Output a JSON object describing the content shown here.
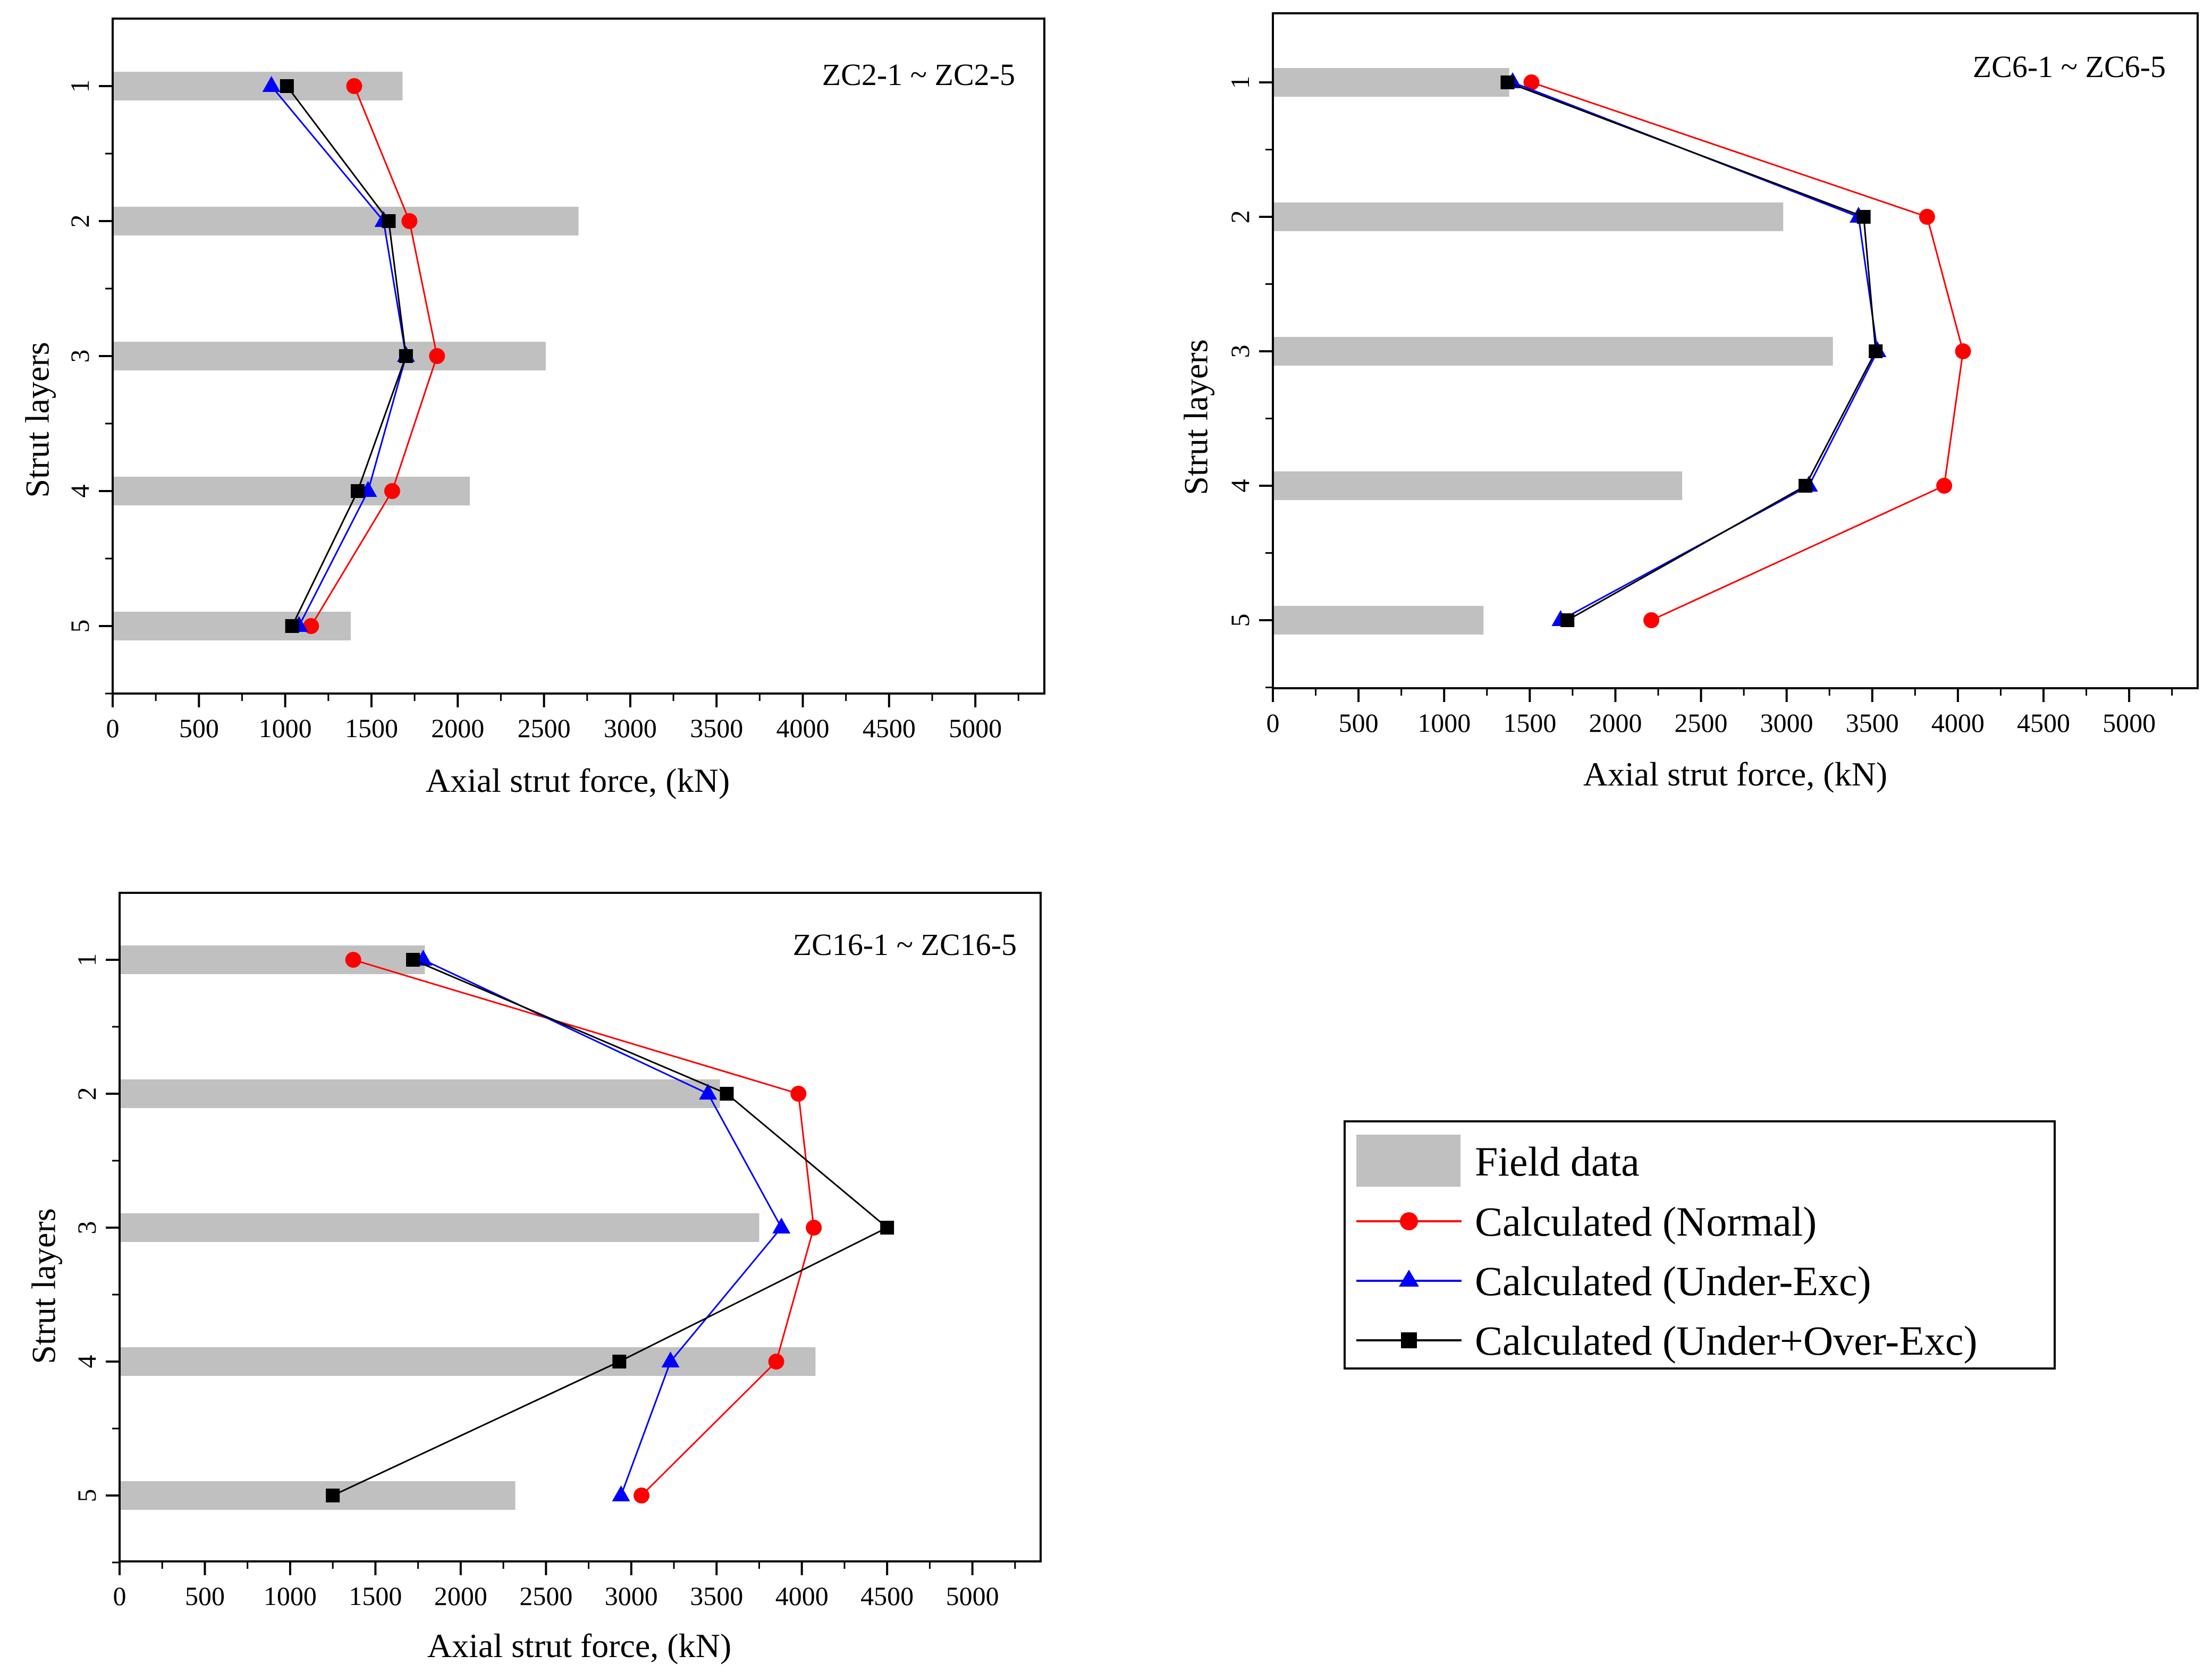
{
  "figure": {
    "legend": {
      "entries": [
        {
          "key": "field",
          "label": "Field data",
          "color": "#c0c0c0",
          "marker": "bar"
        },
        {
          "key": "normal",
          "label": "Calculated (Normal)",
          "color": "#ff0000",
          "marker": "circle"
        },
        {
          "key": "under",
          "label": "Calculated (Under-Exc)",
          "color": "#0000ff",
          "marker": "triangle"
        },
        {
          "key": "overunder",
          "label": "Calculated (Under+Over-Exc)",
          "color": "#000000",
          "marker": "square"
        }
      ]
    }
  },
  "chart_data": [
    {
      "type": "bar+line",
      "title": "ZC2-1 ~ ZC2-5",
      "xlabel": "Axial strut force, (kN)",
      "ylabel": "Strut layers",
      "xlim": [
        0,
        5400
      ],
      "xticks": [
        0,
        500,
        1000,
        1500,
        2000,
        2500,
        3000,
        3500,
        4000,
        4500,
        5000
      ],
      "categories": [
        "1",
        "2",
        "3",
        "4",
        "5"
      ],
      "series": [
        {
          "key": "field",
          "name": "Field data",
          "values": [
            1680,
            2700,
            2510,
            2070,
            1380
          ]
        },
        {
          "key": "normal",
          "name": "Calculated (Normal)",
          "values": [
            1400,
            1720,
            1880,
            1620,
            1150
          ]
        },
        {
          "key": "under",
          "name": "Calculated (Under-Exc)",
          "values": [
            920,
            1570,
            1700,
            1480,
            1080
          ]
        },
        {
          "key": "overunder",
          "name": "Calculated (Under+Over-Exc)",
          "values": [
            1010,
            1600,
            1700,
            1420,
            1040
          ]
        }
      ]
    },
    {
      "type": "bar+line",
      "title": "ZC6-1 ~ ZC6-5",
      "xlabel": "Axial strut force, (kN)",
      "ylabel": "Strut layers",
      "xlim": [
        0,
        5400
      ],
      "xticks": [
        0,
        500,
        1000,
        1500,
        2000,
        2500,
        3000,
        3500,
        4000,
        4500,
        5000
      ],
      "categories": [
        "1",
        "2",
        "3",
        "4",
        "5"
      ],
      "series": [
        {
          "key": "field",
          "name": "Field data",
          "values": [
            1380,
            2980,
            3270,
            2390,
            1230
          ]
        },
        {
          "key": "normal",
          "name": "Calculated (Normal)",
          "values": [
            1510,
            3820,
            4030,
            3920,
            2210
          ]
        },
        {
          "key": "under",
          "name": "Calculated (Under-Exc)",
          "values": [
            1400,
            3420,
            3530,
            3130,
            1680
          ]
        },
        {
          "key": "overunder",
          "name": "Calculated (Under+Over-Exc)",
          "values": [
            1370,
            3450,
            3520,
            3110,
            1720
          ]
        }
      ]
    },
    {
      "type": "bar+line",
      "title": "ZC16-1 ~ ZC16-5",
      "xlabel": "Axial strut force, (kN)",
      "ylabel": "Strut layers",
      "xlim": [
        0,
        5400
      ],
      "xticks": [
        0,
        500,
        1000,
        1500,
        2000,
        2500,
        3000,
        3500,
        4000,
        4500,
        5000
      ],
      "categories": [
        "1",
        "2",
        "3",
        "4",
        "5"
      ],
      "series": [
        {
          "key": "field",
          "name": "Field data",
          "values": [
            1790,
            3520,
            3750,
            4080,
            2320
          ]
        },
        {
          "key": "normal",
          "name": "Calculated (Normal)",
          "values": [
            1370,
            3980,
            4070,
            3850,
            3060
          ]
        },
        {
          "key": "under",
          "name": "Calculated (Under-Exc)",
          "values": [
            1780,
            3450,
            3880,
            3230,
            2940
          ]
        },
        {
          "key": "overunder",
          "name": "Calculated (Under+Over-Exc)",
          "values": [
            1720,
            3560,
            4500,
            2930,
            1250
          ]
        }
      ]
    }
  ]
}
